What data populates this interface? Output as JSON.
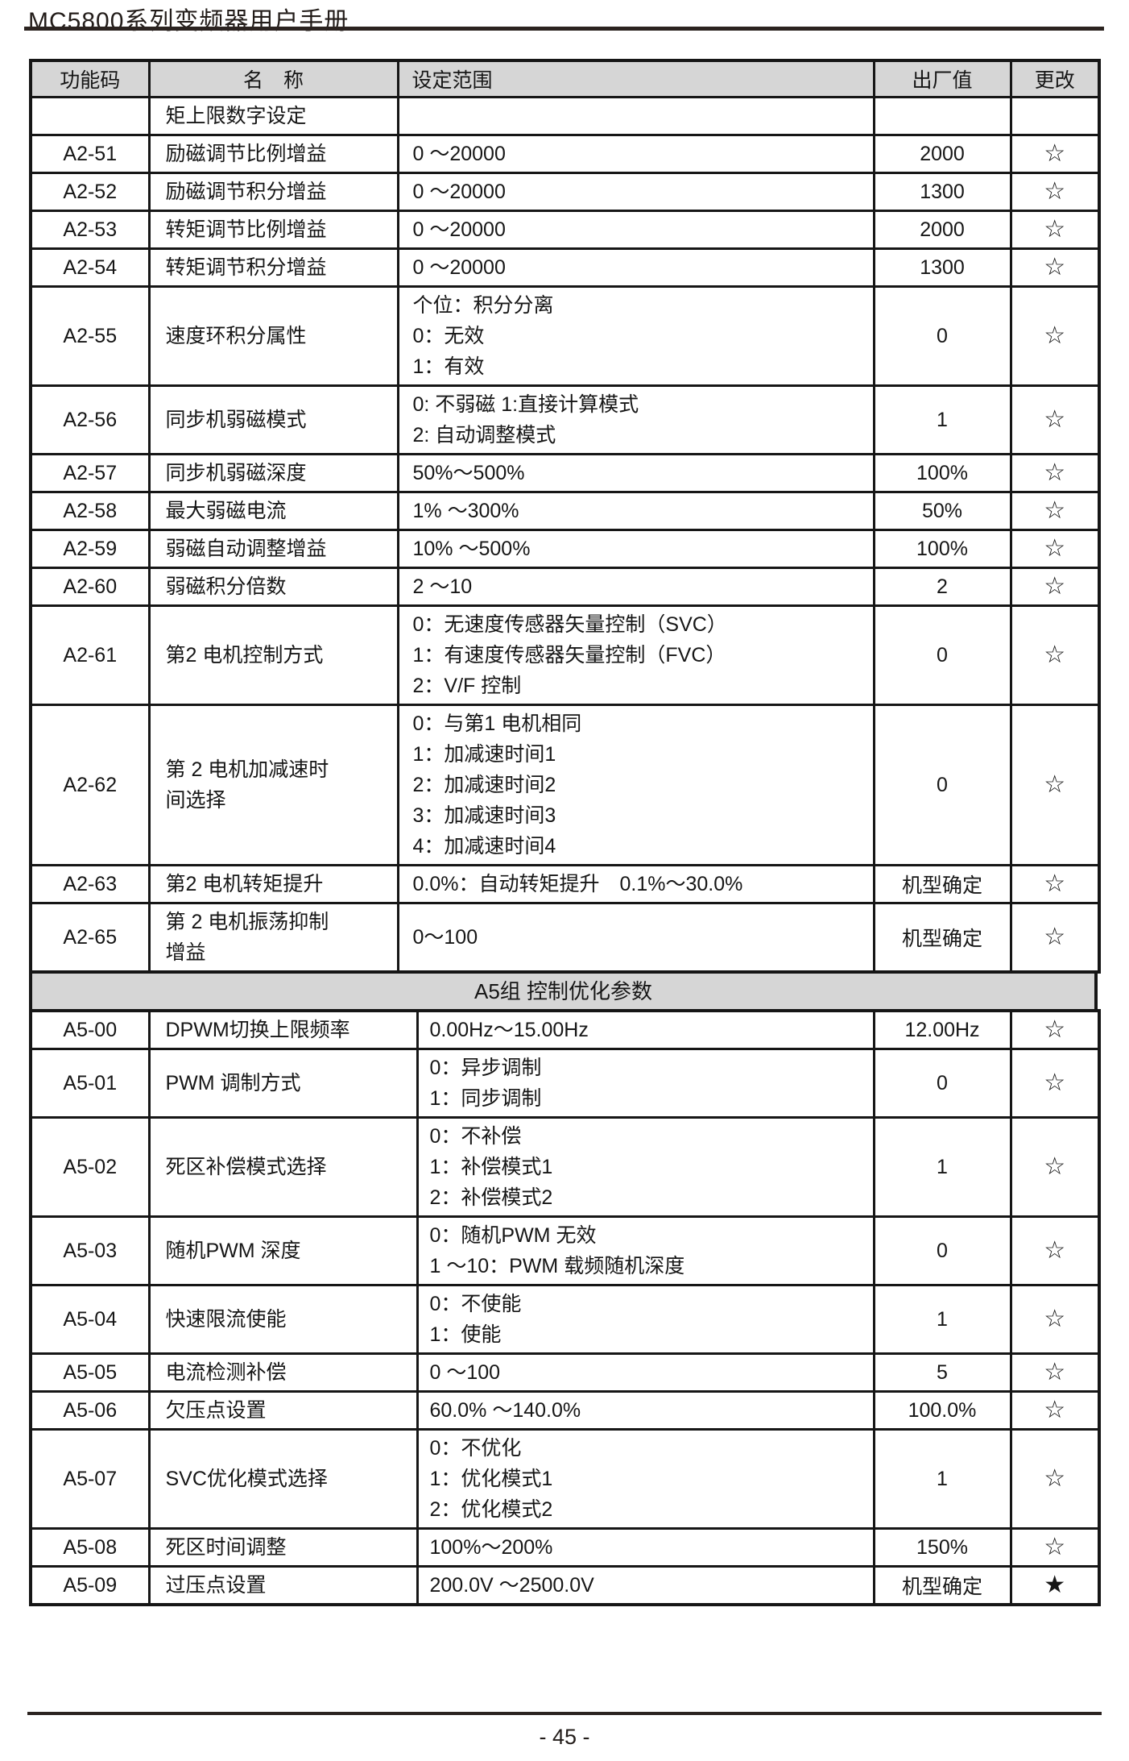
{
  "page": {
    "title": "MC5800系列变频器用户手册",
    "page_number": "- 45 -"
  },
  "colors": {
    "header_bg": "#d6d6d6",
    "rule": "#2b2320",
    "border": "#161616"
  },
  "table": {
    "columns": [
      "功能码",
      "名　称",
      "设定范围",
      "出厂值",
      "更改"
    ],
    "section_header": "A5组 控制优化参数",
    "a2_rows": [
      {
        "code": "",
        "name": [
          "矩上限数字设定"
        ],
        "range": [],
        "default": "",
        "change": ""
      },
      {
        "code": "A2-51",
        "name": [
          "励磁调节比例增益"
        ],
        "range": [
          "0 ～20000"
        ],
        "default": "2000",
        "change": "☆"
      },
      {
        "code": "A2-52",
        "name": [
          "励磁调节积分增益"
        ],
        "range": [
          "0 ～20000"
        ],
        "default": "1300",
        "change": "☆"
      },
      {
        "code": "A2-53",
        "name": [
          "转矩调节比例增益"
        ],
        "range": [
          "0 ～20000"
        ],
        "default": "2000",
        "change": "☆"
      },
      {
        "code": "A2-54",
        "name": [
          "转矩调节积分增益"
        ],
        "range": [
          "0 ～20000"
        ],
        "default": "1300",
        "change": "☆"
      },
      {
        "code": "A2-55",
        "name": [
          "速度环积分属性"
        ],
        "range": [
          "个位：积分分离",
          "0：无效",
          "1：有效"
        ],
        "default": "0",
        "change": "☆"
      },
      {
        "code": "A2-56",
        "name": [
          "同步机弱磁模式"
        ],
        "range": [
          "0: 不弱磁  1:直接计算模式",
          "2: 自动调整模式"
        ],
        "default": "1",
        "change": "☆"
      },
      {
        "code": "A2-57",
        "name": [
          "同步机弱磁深度"
        ],
        "range": [
          "50%～500%"
        ],
        "default": "100%",
        "change": "☆"
      },
      {
        "code": "A2-58",
        "name": [
          "最大弱磁电流"
        ],
        "range": [
          "1% ～300%"
        ],
        "default": "50%",
        "change": "☆"
      },
      {
        "code": "A2-59",
        "name": [
          "弱磁自动调整增益"
        ],
        "range": [
          "10% ～500%"
        ],
        "default": "100%",
        "change": "☆"
      },
      {
        "code": "A2-60",
        "name": [
          "弱磁积分倍数"
        ],
        "range": [
          "2 ～10"
        ],
        "default": "2",
        "change": "☆"
      },
      {
        "code": "A2-61",
        "name": [
          "第2 电机控制方式"
        ],
        "range": [
          "0：无速度传感器矢量控制（SVC）",
          "1：有速度传感器矢量控制（FVC）",
          "2：V/F 控制"
        ],
        "default": "0",
        "change": "☆"
      },
      {
        "code": "A2-62",
        "name": [
          "第 2 电机加减速时",
          "间选择"
        ],
        "range": [
          "0：与第1 电机相同",
          "1：加减速时间1",
          "2：加减速时间2",
          "3：加减速时间3",
          "4：加减速时间4"
        ],
        "default": "0",
        "change": "☆"
      },
      {
        "code": "A2-63",
        "name": [
          "第2 电机转矩提升"
        ],
        "range": [
          "0.0%：自动转矩提升　0.1%～30.0%"
        ],
        "default": "机型确定",
        "change": "☆"
      },
      {
        "code": "A2-65",
        "name": [
          "第 2 电机振荡抑制",
          "增益"
        ],
        "range": [
          "0～100"
        ],
        "default": "机型确定",
        "change": "☆"
      }
    ],
    "a5_rows": [
      {
        "code": "A5-00",
        "name": [
          "DPWM切换上限频率"
        ],
        "range": [
          "0.00Hz～15.00Hz"
        ],
        "default": "12.00Hz",
        "change": "☆"
      },
      {
        "code": "A5-01",
        "name": [
          "PWM 调制方式"
        ],
        "range": [
          "0：异步调制",
          "1：同步调制"
        ],
        "default": "0",
        "change": "☆"
      },
      {
        "code": "A5-02",
        "name": [
          "死区补偿模式选择"
        ],
        "range": [
          "0：不补偿",
          "1：补偿模式1",
          "2：补偿模式2"
        ],
        "default": "1",
        "change": "☆"
      },
      {
        "code": "A5-03",
        "name": [
          "随机PWM 深度"
        ],
        "range": [
          "0：随机PWM 无效",
          "1 ～10：PWM 载频随机深度"
        ],
        "default": "0",
        "change": "☆"
      },
      {
        "code": "A5-04",
        "name": [
          "快速限流使能"
        ],
        "range": [
          "0：不使能",
          "1：使能"
        ],
        "default": "1",
        "change": "☆"
      },
      {
        "code": "A5-05",
        "name": [
          "电流检测补偿"
        ],
        "range": [
          "0 ～100"
        ],
        "default": "5",
        "change": "☆"
      },
      {
        "code": "A5-06",
        "name": [
          "欠压点设置"
        ],
        "range": [
          "60.0% ～140.0%"
        ],
        "default": "100.0%",
        "change": "☆"
      },
      {
        "code": "A5-07",
        "name": [
          "SVC优化模式选择"
        ],
        "range": [
          "0：不优化",
          "1：优化模式1",
          "2：优化模式2"
        ],
        "default": "1",
        "change": "☆"
      },
      {
        "code": "A5-08",
        "name": [
          "死区时间调整"
        ],
        "range": [
          "100%～200%"
        ],
        "default": "150%",
        "change": "☆"
      },
      {
        "code": "A5-09",
        "name": [
          "过压点设置"
        ],
        "range": [
          "200.0V ～2500.0V"
        ],
        "default": "机型确定",
        "change": "★"
      }
    ]
  }
}
